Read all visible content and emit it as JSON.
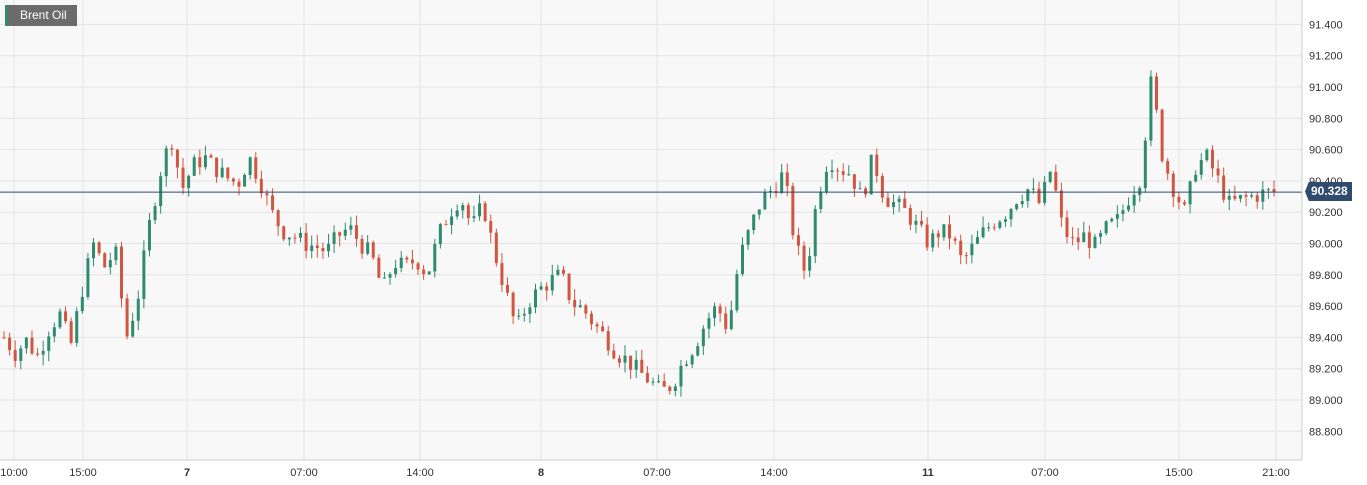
{
  "legend": {
    "label": "Brent Oil"
  },
  "current_price": {
    "label": "90.328"
  },
  "chart_data": {
    "type": "candlestick",
    "instrument": "Brent Oil",
    "y_axis": {
      "ticks": [
        "88.800",
        "89.000",
        "89.200",
        "89.400",
        "89.600",
        "89.800",
        "90.000",
        "90.200",
        "90.400",
        "90.600",
        "90.800",
        "91.000",
        "91.200",
        "91.400"
      ],
      "ylim": [
        88.62,
        91.52
      ],
      "side": "right"
    },
    "x_axis": {
      "ticks": [
        {
          "label": "10:00",
          "bold": false
        },
        {
          "label": "15:00",
          "bold": false
        },
        {
          "label": "7",
          "bold": true
        },
        {
          "label": "07:00",
          "bold": false
        },
        {
          "label": "14:00",
          "bold": false
        },
        {
          "label": "8",
          "bold": true
        },
        {
          "label": "07:00",
          "bold": false
        },
        {
          "label": "14:00",
          "bold": false
        },
        {
          "label": "11",
          "bold": true
        },
        {
          "label": "07:00",
          "bold": false
        },
        {
          "label": "15:00",
          "bold": false
        },
        {
          "label": "21:00",
          "bold": false
        }
      ]
    },
    "current_value": 90.328,
    "grid": true,
    "colors": {
      "up": "#2e8b6f",
      "down": "#d2553f",
      "current_line": "#2f4b6e",
      "grid": "#e4e4e4"
    },
    "close_path": [
      89.4,
      89.3,
      89.38,
      89.28,
      89.45,
      89.55,
      89.35,
      89.7,
      90.0,
      89.85,
      89.95,
      89.4,
      89.65,
      90.1,
      90.45,
      90.68,
      90.35,
      90.5,
      90.55,
      90.48,
      90.42,
      90.38,
      90.55,
      90.4,
      90.2,
      90.08,
      90.05,
      90.0,
      89.98,
      89.95,
      90.05,
      90.1,
      90.0,
      89.92,
      89.7,
      89.88,
      89.85,
      89.9,
      89.8,
      90.05,
      90.2,
      90.3,
      90.1,
      90.25,
      89.95,
      89.7,
      89.45,
      89.62,
      89.7,
      89.76,
      89.8,
      89.62,
      89.58,
      89.48,
      89.4,
      89.3,
      89.25,
      89.18,
      89.12,
      89.05,
      89.1,
      89.25,
      89.35,
      89.5,
      89.6,
      89.45,
      89.9,
      90.1,
      90.28,
      90.35,
      90.45,
      90.0,
      89.8,
      90.3,
      90.55,
      90.48,
      90.45,
      90.28,
      90.55,
      90.3,
      90.25,
      90.2,
      90.1,
      90.0,
      90.08,
      90.05,
      89.88,
      89.98,
      90.08,
      90.15,
      90.2,
      90.3,
      90.35,
      90.25,
      90.48,
      90.1,
      90.0,
      90.05,
      89.98,
      90.1,
      90.15,
      90.3,
      90.42,
      91.05,
      90.55,
      90.35,
      90.2,
      90.5,
      90.55,
      90.4,
      90.25,
      90.28,
      90.3,
      90.32,
      90.328
    ]
  }
}
